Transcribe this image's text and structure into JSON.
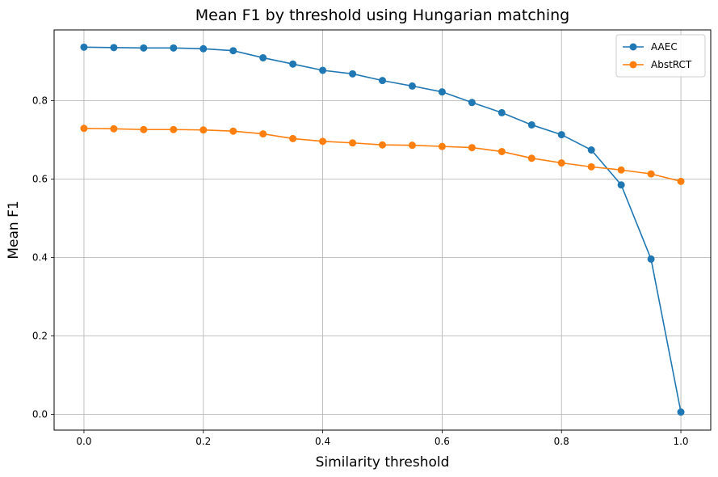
{
  "chart_data": {
    "type": "line",
    "title": "Mean F1 by threshold using Hungarian matching",
    "xlabel": "Similarity threshold",
    "ylabel": "Mean F1",
    "xlim": [
      -0.05,
      1.05
    ],
    "ylim": [
      -0.04,
      0.98
    ],
    "x_ticks": [
      0.0,
      0.2,
      0.4,
      0.6,
      0.8,
      1.0
    ],
    "x_tick_labels": [
      "0.0",
      "0.2",
      "0.4",
      "0.6",
      "0.8",
      "1.0"
    ],
    "y_ticks": [
      0.0,
      0.2,
      0.4,
      0.6,
      0.8
    ],
    "y_tick_labels": [
      "0.0",
      "0.2",
      "0.4",
      "0.6",
      "0.8"
    ],
    "grid": true,
    "legend_position": "top-right",
    "x": [
      0.0,
      0.05,
      0.1,
      0.15,
      0.2,
      0.25,
      0.3,
      0.35,
      0.4,
      0.45,
      0.5,
      0.55,
      0.6,
      0.65,
      0.7,
      0.75,
      0.8,
      0.85,
      0.9,
      0.95,
      1.0
    ],
    "series": [
      {
        "name": "AAEC",
        "color": "#1f77b4",
        "marker": "circle",
        "values": [
          0.936,
          0.935,
          0.934,
          0.934,
          0.932,
          0.927,
          0.909,
          0.893,
          0.877,
          0.868,
          0.851,
          0.837,
          0.822,
          0.795,
          0.769,
          0.738,
          0.713,
          0.674,
          0.585,
          0.396,
          0.006
        ]
      },
      {
        "name": "AbstRCT",
        "color": "#ff7f0e",
        "marker": "circle",
        "values": [
          0.729,
          0.728,
          0.726,
          0.726,
          0.725,
          0.722,
          0.715,
          0.703,
          0.696,
          0.692,
          0.687,
          0.686,
          0.683,
          0.68,
          0.67,
          0.653,
          0.641,
          0.631,
          0.623,
          0.613,
          0.594
        ]
      }
    ]
  }
}
